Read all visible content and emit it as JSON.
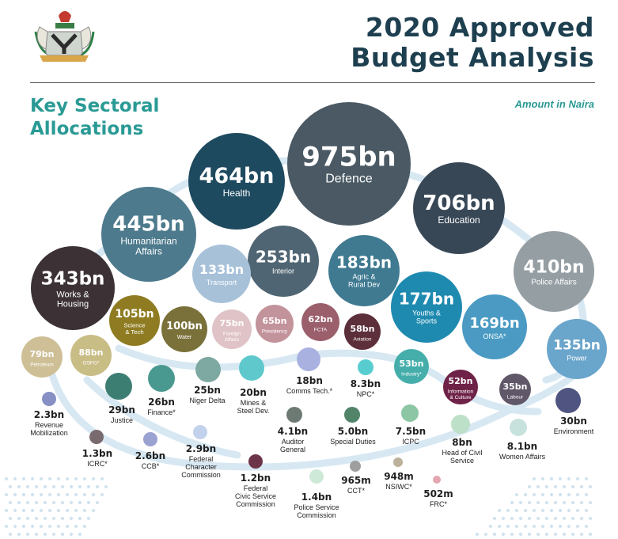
{
  "header": {
    "title_line1": "2020 Approved",
    "title_line2": "Budget Analysis",
    "subtitle_line1": "Key Sectoral",
    "subtitle_line2": "Allocations",
    "unit_note": "Amount in Naira",
    "logo": "nigeria-coat-of-arms"
  },
  "chart_data": {
    "type": "bubble",
    "title": "2020 Approved Budget Analysis",
    "subtitle": "Key Sectoral Allocations",
    "unit": "Naira",
    "sectors": [
      {
        "label": "Defence",
        "value": "975bn",
        "amount": 975000000000,
        "color": "#4a5963"
      },
      {
        "label": "Education",
        "value": "706bn",
        "amount": 706000000000,
        "color": "#384756"
      },
      {
        "label": "Health",
        "value": "464bn",
        "amount": 464000000000,
        "color": "#1e4a5f"
      },
      {
        "label": "Humanitarian Affairs",
        "value": "445bn",
        "amount": 445000000000,
        "color": "#4d7a8c"
      },
      {
        "label": "Police Affairs",
        "value": "410bn",
        "amount": 410000000000,
        "color": "#959ea3"
      },
      {
        "label": "Works & Housing",
        "value": "343bn",
        "amount": 343000000000,
        "color": "#3c3236"
      },
      {
        "label": "Interior",
        "value": "253bn",
        "amount": 253000000000,
        "color": "#4f6573"
      },
      {
        "label": "Agric & Rural Dev",
        "value": "183bn",
        "amount": 183000000000,
        "color": "#3f7a91"
      },
      {
        "label": "Youths & Sports",
        "value": "177bn",
        "amount": 177000000000,
        "color": "#1f8ab0"
      },
      {
        "label": "ONSA*",
        "value": "169bn",
        "amount": 169000000000,
        "color": "#4a9ac3"
      },
      {
        "label": "Power",
        "value": "135bn",
        "amount": 135000000000,
        "color": "#6aa5cb"
      },
      {
        "label": "Transport",
        "value": "133bn",
        "amount": 133000000000,
        "color": "#a7c1d9"
      },
      {
        "label": "Science & Tech",
        "value": "105bn",
        "amount": 105000000000,
        "color": "#8f7c22"
      },
      {
        "label": "Water",
        "value": "100bn",
        "amount": 100000000000,
        "color": "#7a713a"
      },
      {
        "label": "OSFG*",
        "value": "88bn",
        "amount": 88000000000,
        "color": "#c9bd86"
      },
      {
        "label": "Petroleum",
        "value": "79bn",
        "amount": 79000000000,
        "color": "#cebf96"
      },
      {
        "label": "Foreign Affairs",
        "value": "75bn",
        "amount": 75000000000,
        "color": "#dfc3c6"
      },
      {
        "label": "Presidency",
        "value": "65bn",
        "amount": 65000000000,
        "color": "#c3939c"
      },
      {
        "label": "FCTA",
        "value": "62bn",
        "amount": 62000000000,
        "color": "#9b5f6c"
      },
      {
        "label": "Aviation",
        "value": "58bn",
        "amount": 58000000000,
        "color": "#5c2f3b"
      },
      {
        "label": "Industry*",
        "value": "53bn",
        "amount": 53000000000,
        "color": "#45aeab"
      },
      {
        "label": "Information & Culture",
        "value": "52bn",
        "amount": 52000000000,
        "color": "#6f2247"
      },
      {
        "label": "Labour",
        "value": "35bn",
        "amount": 35000000000,
        "color": "#605768"
      },
      {
        "label": "Environment",
        "value": "30bn",
        "amount": 30000000000,
        "color": "#4f5580"
      },
      {
        "label": "Justice",
        "value": "29bn",
        "amount": 29000000000,
        "color": "#3d7e73"
      },
      {
        "label": "Finance*",
        "value": "26bn",
        "amount": 26000000000,
        "color": "#4a9991"
      },
      {
        "label": "Niger Delta",
        "value": "25bn",
        "amount": 25000000000,
        "color": "#7ea8a2"
      },
      {
        "label": "Mines & Steel Dev.",
        "value": "20bn",
        "amount": 20000000000,
        "color": "#5ec8cc"
      },
      {
        "label": "Comms Tech.*",
        "value": "18bn",
        "amount": 18000000000,
        "color": "#a8b1e0"
      },
      {
        "label": "NPC*",
        "value": "8.3bn",
        "amount": 8300000000,
        "color": "#58cdd0"
      },
      {
        "label": "8.1bn",
        "value": "8.1bn",
        "amount": 8100000000,
        "color": "#c7e2dd"
      },
      {
        "label": "Head of Civil Service",
        "value": "8bn",
        "amount": 8000000000,
        "color": "#bde0c9"
      },
      {
        "label": "ICPC",
        "value": "7.5bn",
        "amount": 7500000000,
        "color": "#8cc6a5"
      },
      {
        "label": "Special Duties",
        "value": "5.0bn",
        "amount": 5000000000,
        "color": "#52846a"
      },
      {
        "label": "Auditor General",
        "value": "4.1bn",
        "amount": 4100000000,
        "color": "#6d7a74"
      },
      {
        "label": "Federal Character Commission",
        "value": "2.9bn",
        "amount": 2900000000,
        "color": "#c2d2ed"
      },
      {
        "label": "CCB*",
        "value": "2.6bn",
        "amount": 2600000000,
        "color": "#9aa2d2"
      },
      {
        "label": "Revenue Mobilization",
        "value": "2.3bn",
        "amount": 2300000000,
        "color": "#8690c4"
      },
      {
        "label": "Police Service Commission",
        "value": "1.4bn",
        "amount": 1400000000,
        "color": "#cfe9d9"
      },
      {
        "label": "ICRC*",
        "value": "1.3bn",
        "amount": 1300000000,
        "color": "#786a6f"
      },
      {
        "label": "Federal Civic Service Commission",
        "value": "1.2bn",
        "amount": 1200000000,
        "color": "#6b3448"
      },
      {
        "label": "CCT*",
        "value": "965m",
        "amount": 965000000,
        "color": "#9f9f9f"
      },
      {
        "label": "NSIWC*",
        "value": "948m",
        "amount": 948000000,
        "color": "#bcb29b"
      },
      {
        "label": "FRC*",
        "value": "502m",
        "amount": 502000000,
        "color": "#e3a6b0"
      }
    ]
  }
}
